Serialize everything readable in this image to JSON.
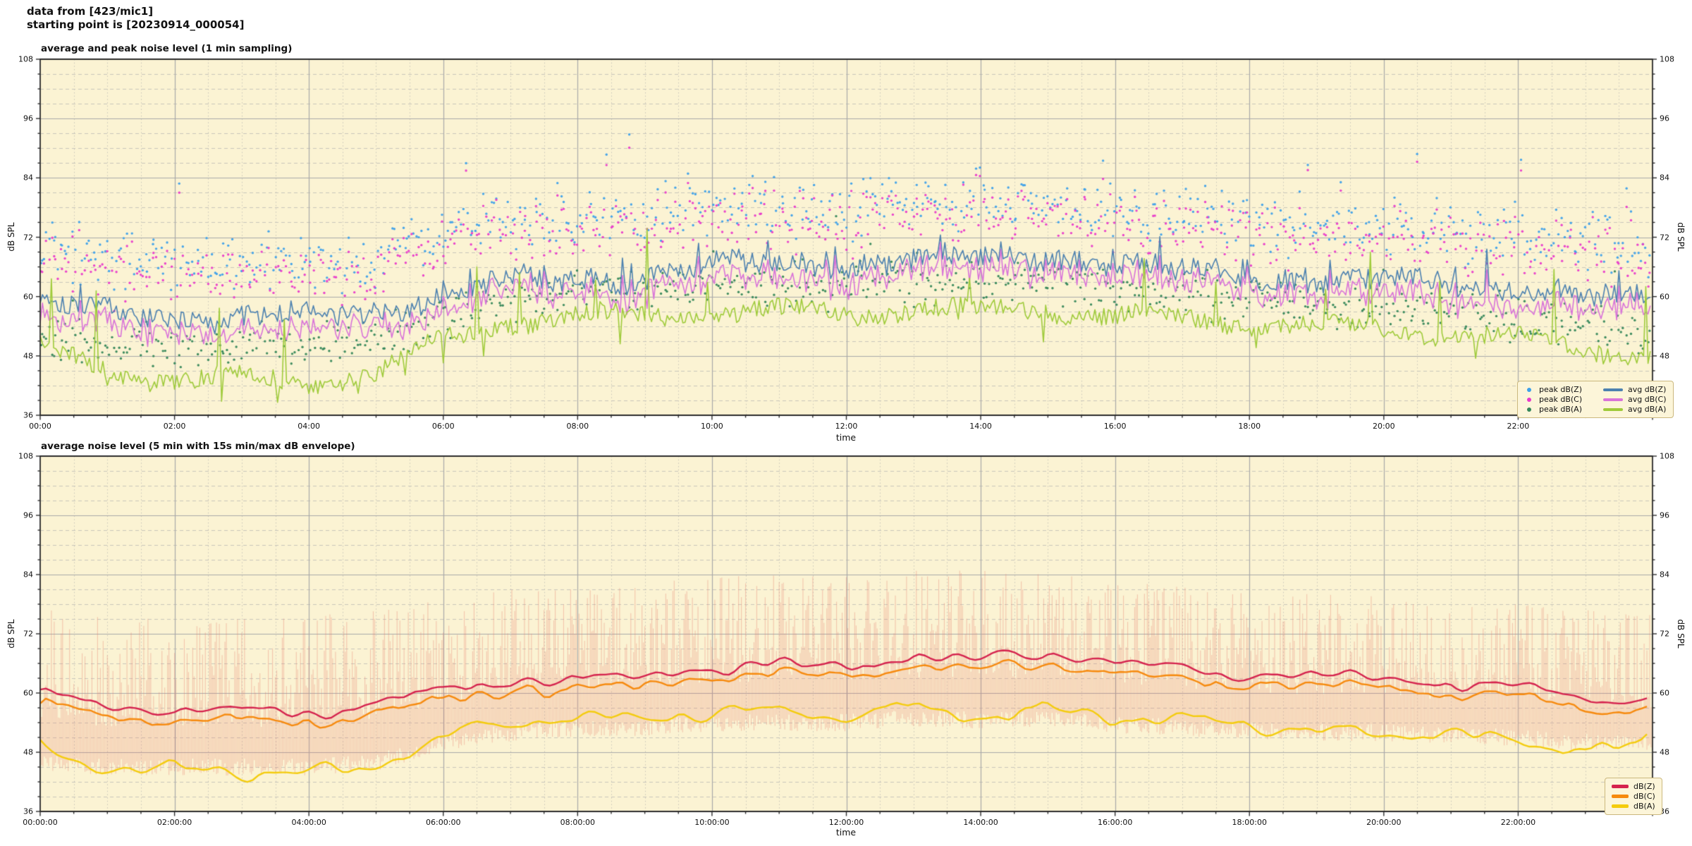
{
  "header": {
    "line1": "data from [423/mic1]",
    "line2": "starting point is [20230914_000054]"
  },
  "figure_style": {
    "plot_bg": "#FBF3D3",
    "grid_major": "#A9A9A9",
    "grid_minor": "#C9C6BA",
    "spine": "#2B2B2B",
    "text": "#111111",
    "legend_bg": "#FCF5D9",
    "legend_border": "#CBB87E"
  },
  "chart_data": [
    {
      "type": "line+scatter",
      "title": "average and peak noise level (1 min sampling)",
      "xlabel": "time",
      "ylabel": "dB SPL",
      "xlim_hours": [
        0,
        24
      ],
      "ylim": [
        36,
        108
      ],
      "yticks": [
        36,
        48,
        60,
        72,
        84,
        96,
        108
      ],
      "y_minor_step_db": 3,
      "x_minor_step_min": 30,
      "xticks": {
        "hours": [
          0,
          2,
          4,
          6,
          8,
          10,
          12,
          14,
          16,
          18,
          20,
          22
        ],
        "labels": [
          "00:00",
          "02:00",
          "04:00",
          "06:00",
          "08:00",
          "10:00",
          "12:00",
          "14:00",
          "16:00",
          "18:00",
          "20:00",
          "22:00"
        ]
      },
      "anchor_hours": [
        0,
        1,
        2,
        3,
        4,
        5,
        6,
        7,
        8,
        9,
        10,
        11,
        12,
        13,
        14,
        15,
        16,
        17,
        18,
        19,
        20,
        21,
        22,
        23,
        24
      ],
      "scatter_series": [
        {
          "name": "peak dB(Z)",
          "color": "#3DA0EA",
          "spread": 8.5,
          "hourly_mean": [
            70,
            68,
            67,
            67,
            67,
            68,
            73,
            75,
            76,
            76,
            78,
            78,
            78,
            79,
            79,
            79,
            77,
            76,
            75,
            74.5,
            74,
            73.5,
            73,
            72,
            70
          ]
        },
        {
          "name": "peak dB(C)",
          "color": "#E93ACB",
          "spread": 8.5,
          "hourly_mean": [
            68.5,
            66.5,
            65.5,
            65.5,
            65.5,
            66.5,
            71.5,
            73.5,
            74.5,
            74.5,
            76.5,
            76.5,
            76.5,
            77.5,
            77.5,
            77.5,
            75.5,
            74.5,
            73.5,
            73,
            72.5,
            72,
            71.5,
            70.5,
            68.5
          ]
        },
        {
          "name": "peak dB(A)",
          "color": "#35875A",
          "spread": 6.5,
          "hourly_mean": [
            52,
            50.5,
            50,
            50,
            50,
            51,
            56,
            60,
            61.5,
            61.5,
            62.5,
            62.5,
            62.5,
            63,
            63,
            63,
            61.5,
            60.5,
            59.5,
            58.5,
            58,
            57,
            56,
            54,
            52.5
          ]
        }
      ],
      "line_series": [
        {
          "name": "avg dB(Z)",
          "color": "#4C81B0",
          "jitter": 2.2,
          "hourly_mean": [
            59,
            57,
            56,
            55.5,
            56,
            57,
            61,
            63,
            63.5,
            64,
            66,
            66.5,
            66.5,
            67.5,
            67.5,
            68.5,
            66.5,
            65,
            64,
            63.5,
            63,
            62.5,
            62,
            60.5,
            58.5
          ]
        },
        {
          "name": "avg dB(C)",
          "color": "#D973D9",
          "jitter": 1.4,
          "hourly_mean": [
            56,
            54,
            53,
            52.5,
            53,
            54,
            58,
            60.5,
            61,
            61.5,
            63,
            63.5,
            63.5,
            65,
            65,
            66,
            64,
            62.5,
            61.5,
            61,
            60,
            59.5,
            59,
            58,
            56
          ]
        },
        {
          "name": "avg dB(A)",
          "color": "#9FCB3B",
          "jitter": 1.8,
          "hourly_mean": [
            49.5,
            45,
            43,
            43.5,
            42.5,
            44.5,
            51,
            55,
            56,
            56,
            56.5,
            57,
            56.5,
            57.5,
            57,
            57.5,
            56,
            55.5,
            54.5,
            54,
            53.5,
            52.5,
            51.5,
            49.5,
            48.5
          ]
        }
      ],
      "legend_position": "lower right"
    },
    {
      "type": "line+envelope",
      "title": "average noise level (5 min with 15s min/max dB envelope)",
      "xlabel": "time",
      "ylabel": "dB SPL",
      "xlim_hours": [
        0,
        24
      ],
      "ylim": [
        36,
        108
      ],
      "yticks": [
        36,
        48,
        60,
        72,
        84,
        96,
        108
      ],
      "y_minor_step_db": 3,
      "x_minor_step_min": 30,
      "xticks": {
        "hours": [
          0,
          2,
          4,
          6,
          8,
          10,
          12,
          14,
          16,
          18,
          20,
          22
        ],
        "labels": [
          "00:00:00",
          "02:00:00",
          "04:00:00",
          "06:00:00",
          "08:00:00",
          "10:00:00",
          "12:00:00",
          "14:00:00",
          "16:00:00",
          "18:00:00",
          "20:00:00",
          "22:00:00"
        ]
      },
      "anchor_hours": [
        0,
        1,
        2,
        3,
        4,
        5,
        6,
        7,
        8,
        9,
        10,
        11,
        12,
        13,
        14,
        15,
        16,
        17,
        18,
        19,
        20,
        21,
        22,
        23,
        24
      ],
      "envelope": {
        "name": "15s min/max envelope",
        "color": "#E77C6C",
        "opacity": 0.38,
        "hourly_max": [
          77,
          76,
          75,
          75,
          76,
          77,
          79,
          81,
          81,
          82,
          84,
          84,
          84,
          85,
          85,
          85,
          83,
          82,
          81,
          80,
          79.5,
          79,
          78,
          77,
          76
        ],
        "hourly_min": [
          46,
          45,
          45,
          45,
          45,
          46,
          50,
          52,
          53,
          53,
          54,
          54,
          54,
          55,
          54.5,
          55,
          53.5,
          53,
          52.5,
          52,
          52,
          51.5,
          51,
          50,
          50
        ]
      },
      "line_series": [
        {
          "name": "dB(Z)",
          "color": "#D5234E",
          "jitter": 1.3,
          "hourly_mean": [
            60,
            57.5,
            56.5,
            56,
            56,
            57.5,
            61,
            62.5,
            63,
            63.5,
            65,
            65.5,
            65.5,
            67,
            66.5,
            68,
            66,
            64.5,
            64,
            63.5,
            63,
            62,
            61,
            59.5,
            58.5
          ]
        },
        {
          "name": "dB(C)",
          "color": "#F68A0E",
          "jitter": 0.9,
          "hourly_mean": [
            58,
            55.5,
            54.5,
            54,
            54,
            55.5,
            59,
            60.5,
            61,
            61.5,
            63,
            63.5,
            63.5,
            65,
            64.5,
            66,
            64,
            62.5,
            62,
            61.5,
            61,
            60,
            59,
            57.5,
            56.5
          ]
        },
        {
          "name": "dB(A)",
          "color": "#F4CC0E",
          "jitter": 1.6,
          "hourly_mean": [
            48.5,
            45,
            44,
            44.5,
            43.5,
            45.5,
            51.5,
            54,
            55,
            54.5,
            56.5,
            55.5,
            55.5,
            57,
            55.5,
            56.5,
            55,
            54.5,
            53.5,
            52.5,
            52.5,
            51.5,
            49.5,
            48.5,
            49
          ]
        }
      ],
      "legend_position": "lower right"
    }
  ]
}
